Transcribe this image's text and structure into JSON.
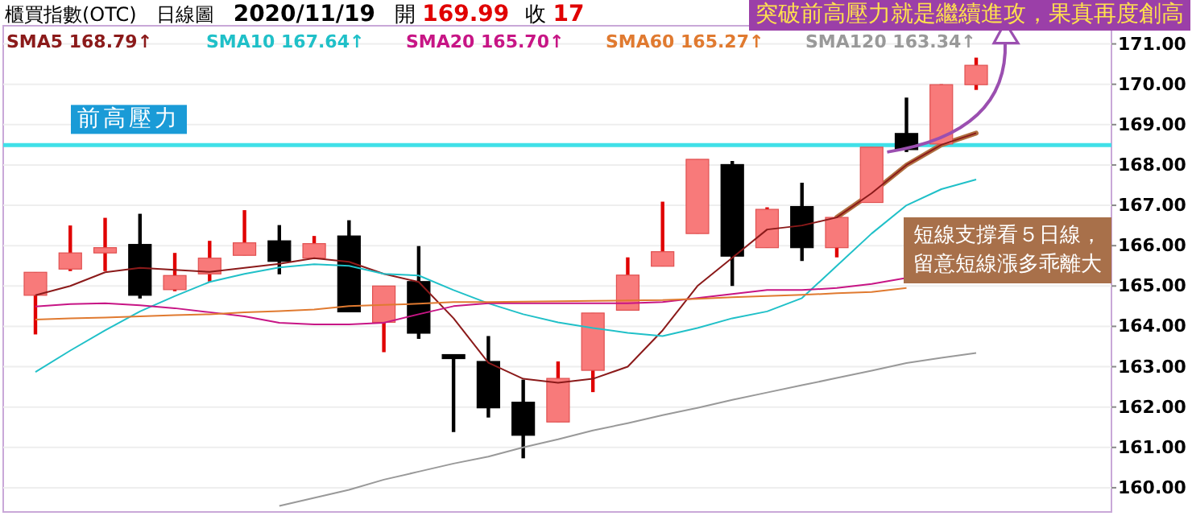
{
  "chart_data": {
    "type": "candlestick",
    "title": "櫃買指數(OTC)",
    "subtitle": "日線圖",
    "annotations": [
      "2020/11/19",
      "開 169.99",
      "收 17",
      "突破前高壓力就是繼續進攻，果真再度創高",
      "短線支撐看５日線，留意短線漲多乖離大"
    ],
    "categories": [
      null,
      null,
      null,
      null,
      null,
      null,
      null,
      null,
      null,
      null,
      null,
      null,
      null,
      null,
      null,
      null,
      null,
      null,
      null,
      null,
      null,
      null,
      null,
      null,
      null,
      null,
      null,
      null
    ],
    "ohlc": [
      [
        164.77,
        165.34,
        163.8,
        165.34
      ],
      [
        165.42,
        166.5,
        165.37,
        165.82
      ],
      [
        165.82,
        166.69,
        165.37,
        165.95
      ],
      [
        166.03,
        166.79,
        164.69,
        164.77
      ],
      [
        164.91,
        165.82,
        164.87,
        165.26
      ],
      [
        165.3,
        166.12,
        165.11,
        165.69
      ],
      [
        165.76,
        166.88,
        165.76,
        166.07
      ],
      [
        166.12,
        166.51,
        165.29,
        165.61
      ],
      [
        165.69,
        166.24,
        165.69,
        166.05
      ],
      [
        166.24,
        166.63,
        164.36,
        164.36
      ],
      [
        164.1,
        165.0,
        163.36,
        165.0
      ],
      [
        165.11,
        165.99,
        163.69,
        163.83
      ],
      [
        163.3,
        163.3,
        161.38,
        163.2
      ],
      [
        163.13,
        163.76,
        161.74,
        161.98
      ],
      [
        162.12,
        162.68,
        160.73,
        161.3
      ],
      [
        161.63,
        163.13,
        161.63,
        162.71
      ],
      [
        162.91,
        164.33,
        162.37,
        164.33
      ],
      [
        164.4,
        165.71,
        164.4,
        165.27
      ],
      [
        165.49,
        167.09,
        165.49,
        165.85
      ],
      [
        166.3,
        168.14,
        166.3,
        168.14
      ],
      [
        168.01,
        168.1,
        165.0,
        165.74
      ],
      [
        165.95,
        166.95,
        165.95,
        166.9
      ],
      [
        166.97,
        167.56,
        165.62,
        165.95
      ],
      [
        165.95,
        166.7,
        165.71,
        166.7
      ],
      [
        167.07,
        168.44,
        167.07,
        168.44
      ],
      [
        168.78,
        169.67,
        168.32,
        168.38
      ],
      [
        168.52,
        170.0,
        168.52,
        169.99
      ],
      [
        169.99,
        170.66,
        169.86,
        170.47
      ]
    ],
    "series": [
      {
        "name": "SMA5 168.79↑",
        "type": "line",
        "color": "#8b1a1a",
        "values": [
          164.77,
          165.0,
          165.34,
          165.45,
          165.4,
          165.35,
          165.45,
          165.55,
          165.69,
          165.6,
          165.3,
          165.1,
          164.2,
          163.1,
          162.7,
          162.6,
          162.7,
          163.0,
          163.9,
          165.0,
          165.7,
          166.4,
          166.5,
          166.7,
          167.3,
          168.0,
          168.5,
          168.79
        ]
      },
      {
        "name": "SMA10 167.64↑",
        "type": "line",
        "color": "#20c0c8",
        "values": [
          162.87,
          163.4,
          163.9,
          164.37,
          164.75,
          165.1,
          165.3,
          165.46,
          165.54,
          165.5,
          165.3,
          165.26,
          164.9,
          164.57,
          164.3,
          164.1,
          163.96,
          163.84,
          163.76,
          163.96,
          164.2,
          164.37,
          164.7,
          165.5,
          166.3,
          167.0,
          167.4,
          167.64
        ]
      },
      {
        "name": "SMA20 165.70↑",
        "type": "line",
        "color": "#c71585",
        "values": [
          164.49,
          164.55,
          164.57,
          164.52,
          164.45,
          164.35,
          164.25,
          164.09,
          164.05,
          164.05,
          164.09,
          164.3,
          164.5,
          164.57,
          164.57,
          164.57,
          164.57,
          164.57,
          164.6,
          164.7,
          164.8,
          164.9,
          164.9,
          164.95,
          165.05,
          165.2,
          null,
          null
        ]
      },
      {
        "name": "SMA60 165.27↑",
        "type": "line",
        "color": "#e07a30",
        "values": [
          164.17,
          164.2,
          164.22,
          164.25,
          164.28,
          164.3,
          164.35,
          164.38,
          164.42,
          164.5,
          164.53,
          164.56,
          164.6,
          164.6,
          164.61,
          164.62,
          164.63,
          164.64,
          164.65,
          164.68,
          164.72,
          164.75,
          164.78,
          164.82,
          164.85,
          164.95,
          null,
          null
        ]
      },
      {
        "name": "SMA120 163.34↑",
        "type": "line",
        "color": "#999999",
        "values": [
          null,
          null,
          null,
          null,
          null,
          null,
          null,
          159.55,
          159.75,
          159.95,
          160.2,
          160.4,
          160.6,
          160.77,
          161.0,
          161.2,
          161.42,
          161.6,
          161.8,
          161.98,
          162.18,
          162.36,
          162.54,
          162.72,
          162.9,
          163.09,
          163.22,
          163.34
        ]
      }
    ],
    "ylim": [
      159.4,
      171.45
    ],
    "yticks": [
      {
        "value": 160,
        "label": "160.00"
      },
      {
        "value": 161,
        "label": "161.00"
      },
      {
        "value": 162,
        "label": "162.00"
      },
      {
        "value": 163,
        "label": "163.00"
      },
      {
        "value": 164,
        "label": "164.00"
      },
      {
        "value": 165,
        "label": "165.00"
      },
      {
        "value": 166,
        "label": "166.00"
      },
      {
        "value": 167,
        "label": "167.00"
      },
      {
        "value": 168,
        "label": "168.00"
      },
      {
        "value": 169,
        "label": "169.00"
      },
      {
        "value": 170,
        "label": "170.00"
      },
      {
        "value": 171,
        "label": "171.00"
      }
    ],
    "ref_lines": [
      {
        "axis": "y",
        "value": 168.49,
        "label": "前高壓力",
        "color": "#40e0e8"
      }
    ],
    "grid": "y",
    "legend": "top"
  }
}
